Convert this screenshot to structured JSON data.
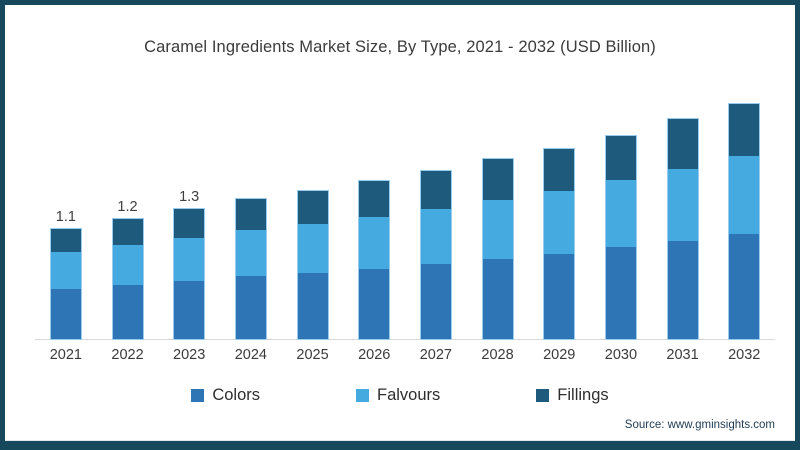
{
  "chart_data": {
    "type": "bar",
    "stacked": true,
    "title": "Caramel Ingredients Market Size, By Type, 2021 - 2032 (USD Billion)",
    "unit": "USD Billion",
    "categories": [
      "2021",
      "2022",
      "2023",
      "2024",
      "2025",
      "2026",
      "2027",
      "2028",
      "2029",
      "2030",
      "2031",
      "2032"
    ],
    "series": [
      {
        "name": "Colors",
        "color": "#2E75B6",
        "values": [
          0.5,
          0.54,
          0.58,
          0.63,
          0.66,
          0.7,
          0.75,
          0.8,
          0.85,
          0.92,
          0.98,
          1.05
        ]
      },
      {
        "name": "Falvours",
        "color": "#45AADF",
        "values": [
          0.37,
          0.4,
          0.43,
          0.46,
          0.49,
          0.52,
          0.55,
          0.59,
          0.63,
          0.67,
          0.72,
          0.78
        ]
      },
      {
        "name": "Fillings",
        "color": "#1D5A7B",
        "values": [
          0.23,
          0.26,
          0.29,
          0.31,
          0.33,
          0.36,
          0.38,
          0.41,
          0.42,
          0.44,
          0.5,
          0.52
        ]
      }
    ],
    "totals": [
      1.1,
      1.2,
      1.3,
      1.4,
      1.48,
      1.58,
      1.68,
      1.8,
      1.9,
      2.03,
      2.2,
      2.35
    ],
    "data_labels": [
      "1.1",
      "1.2",
      "1.3",
      "",
      "",
      "",
      "",
      "",
      "",
      "",
      "",
      ""
    ],
    "ylim": [
      0,
      2.5
    ],
    "grid": false,
    "y_axis_shown": false,
    "legend_position": "bottom",
    "axis_line_color": "#D9D9D9"
  },
  "source_note": "Source: www.gminsights.com",
  "colors": {
    "frame_border": "#17495C",
    "title_text": "#3B3B3B",
    "tick_text": "#3B3B3B",
    "source_text": "#1F3A52",
    "bar_outline": "#98CBEC",
    "baseline": "#D9D9D9",
    "background": "#FFFFFF"
  }
}
